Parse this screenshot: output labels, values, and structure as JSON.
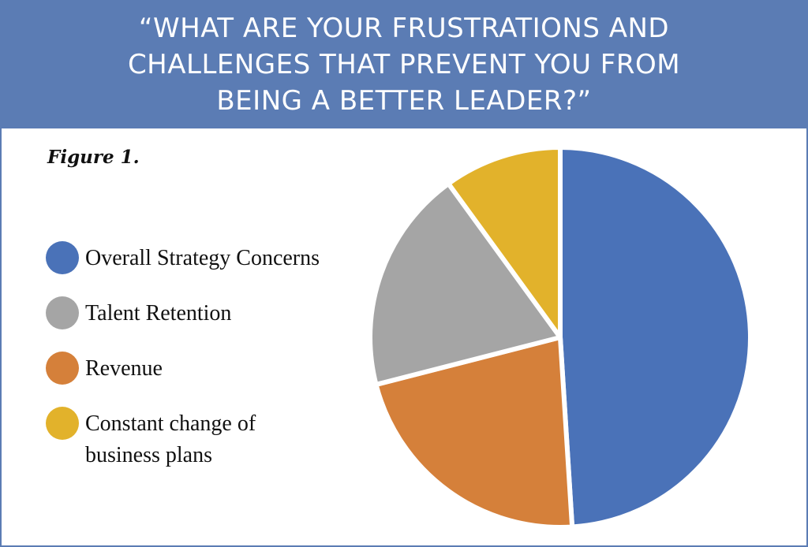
{
  "header": {
    "title_lines": [
      "“WHAT ARE YOUR FRUSTRATIONS AND",
      "CHALLENGES THAT PREVENT YOU FROM",
      "BEING A BETTER LEADER?”"
    ]
  },
  "figure_label": "Figure 1.",
  "colors": {
    "banner": "#5b7cb4",
    "border": "#5b7cb4"
  },
  "chart_data": {
    "type": "pie",
    "title": "“WHAT ARE YOUR FRUSTRATIONS AND CHALLENGES THAT PREVENT YOU FROM BEING A BETTER LEADER?”",
    "categories": [
      "Overall Strategy Concerns",
      "Talent Retention",
      "Revenue",
      "Constant change of business plans"
    ],
    "values": [
      49,
      19,
      22,
      10
    ],
    "unit": "%",
    "colors": [
      "#4a72b8",
      "#a5a5a5",
      "#d5803a",
      "#e2b22b"
    ],
    "legend_position": "left",
    "slice_order_clockwise_from_top": [
      "Overall Strategy Concerns",
      "Revenue",
      "Talent Retention",
      "Constant change of business plans"
    ]
  }
}
